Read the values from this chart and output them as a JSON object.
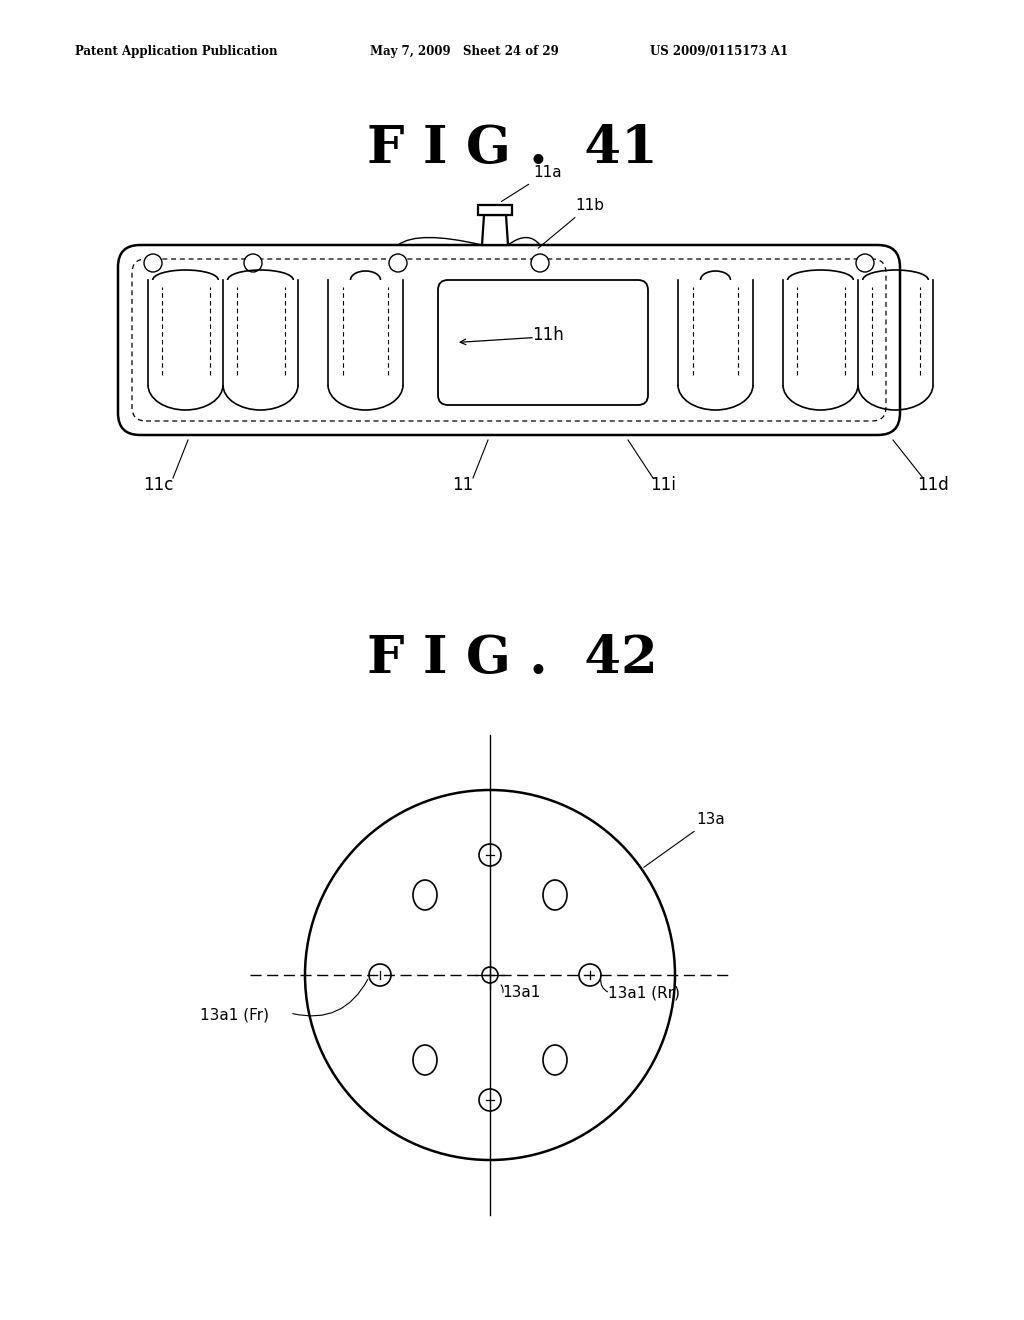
{
  "bg_color": "#ffffff",
  "header_text": "Patent Application Publication",
  "header_date": "May 7, 2009   Sheet 24 of 29",
  "header_patent": "US 2009/0115173 A1",
  "fig41_title": "F I G .  41",
  "fig42_title": "F I G .  42",
  "line_color": "#000000",
  "lw_main": 1.8,
  "lw_thin": 0.9
}
